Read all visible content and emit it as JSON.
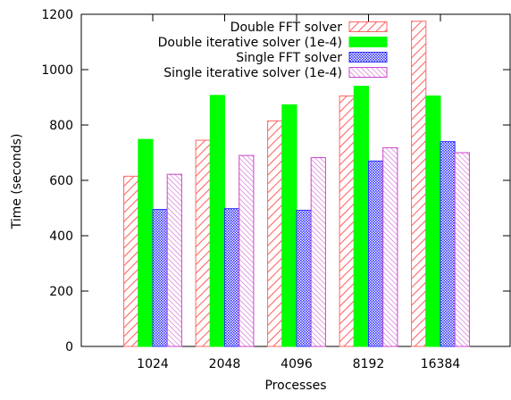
{
  "chart_data": {
    "type": "bar",
    "title": "",
    "xlabel": "Processes",
    "ylabel": "Time (seconds)",
    "categories": [
      "1024",
      "2048",
      "4096",
      "8192",
      "16384"
    ],
    "ylim": [
      0,
      1200
    ],
    "yticks": [
      "0",
      "200",
      "400",
      "600",
      "800",
      "1000",
      "1200"
    ],
    "grid": false,
    "legend_position": "top-right",
    "series": [
      {
        "name": "Double FFT solver",
        "values": [
          615,
          745,
          815,
          905,
          1175
        ],
        "color": "#ff6666",
        "fill_style": "diagonal-hatch"
      },
      {
        "name": "Double iterative solver (1e-4)",
        "values": [
          748,
          907,
          873,
          940,
          905
        ],
        "color": "#00ff00",
        "fill_style": "solid"
      },
      {
        "name": "Single FFT solver",
        "values": [
          495,
          498,
          492,
          670,
          740
        ],
        "color": "#3333ff",
        "fill_style": "crosshatch"
      },
      {
        "name": "Single iterative solver (1e-4)",
        "values": [
          622,
          690,
          682,
          718,
          700
        ],
        "color": "#cc44cc",
        "fill_style": "diagonal-hatch-reverse"
      }
    ]
  }
}
